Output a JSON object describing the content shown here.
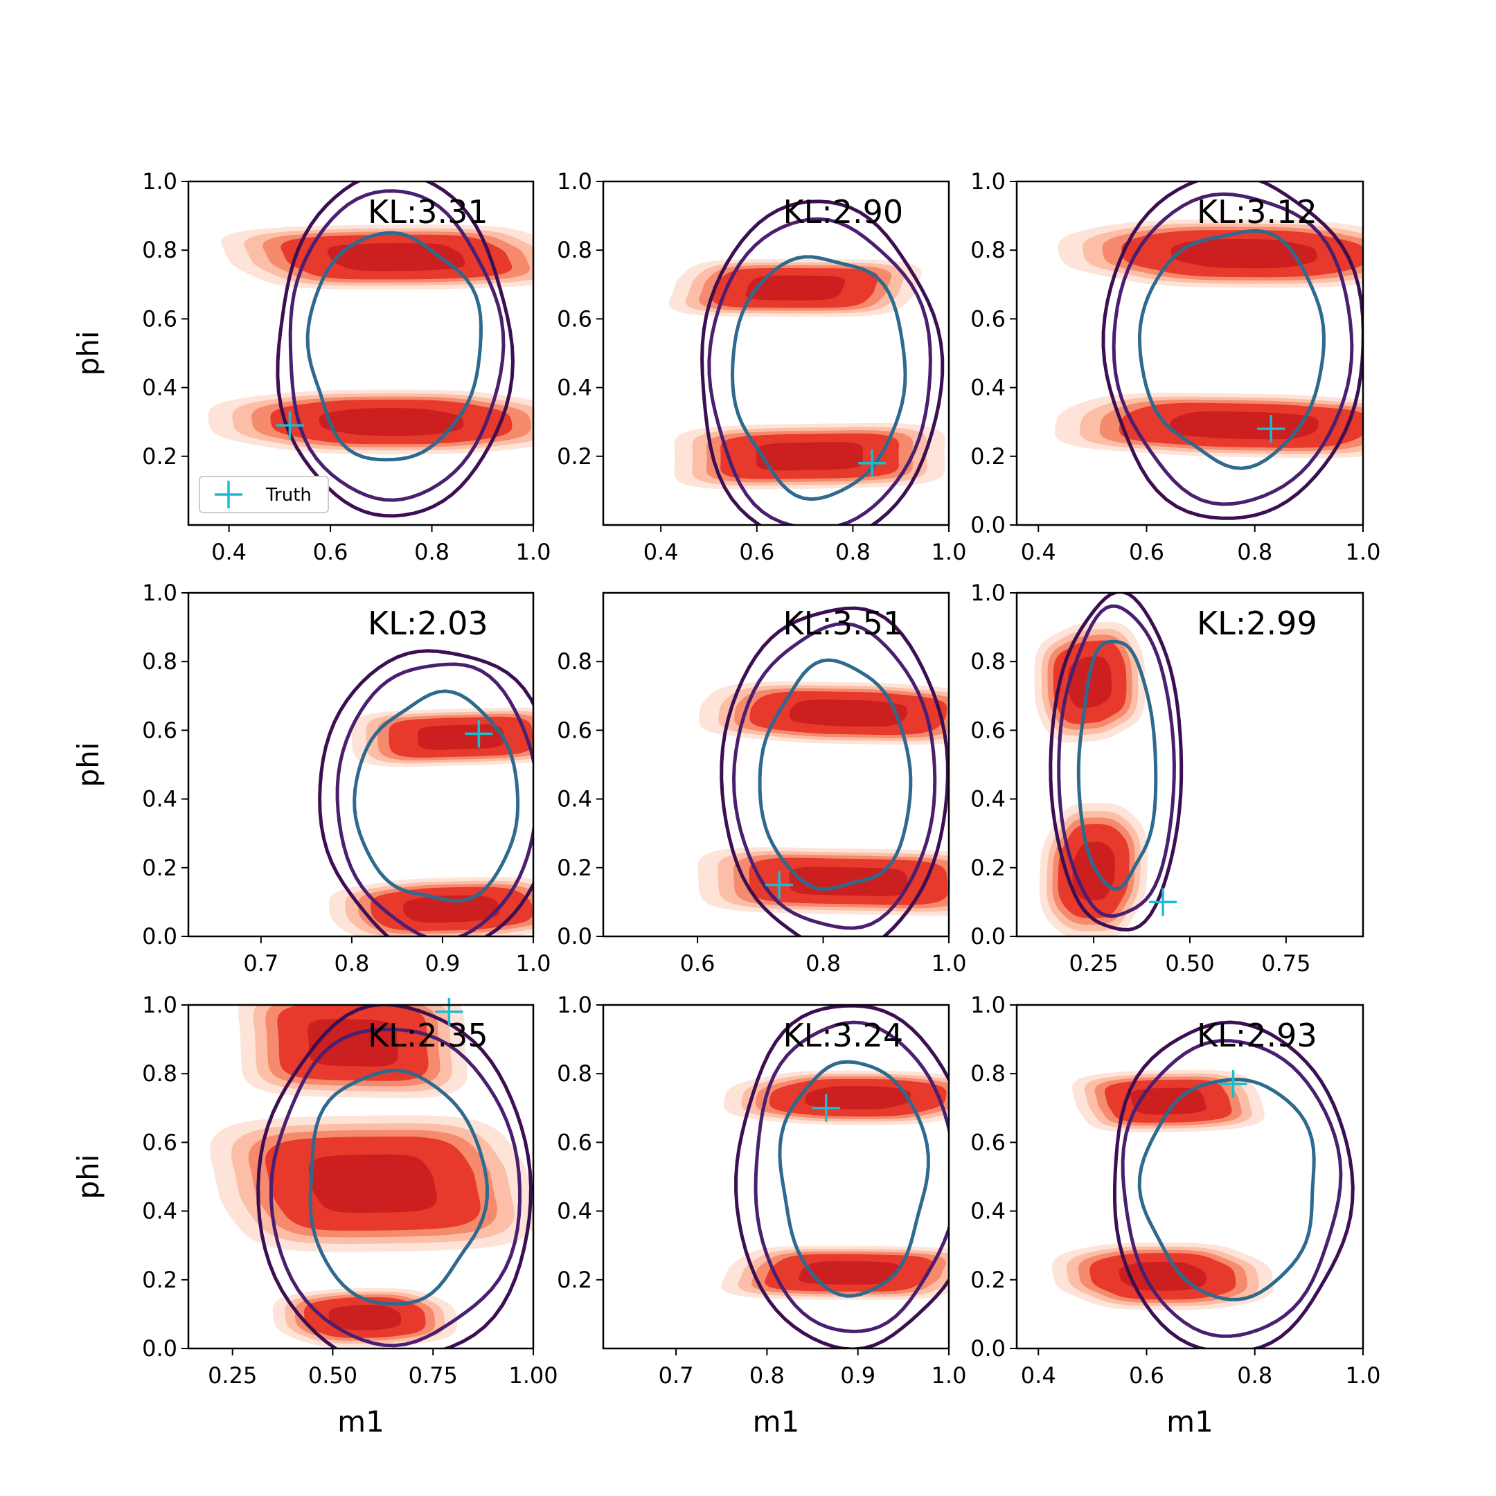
{
  "colors": {
    "fill_levels": [
      "#fde3d8",
      "#fcbea6",
      "#f58a6d",
      "#e8392d",
      "#cc1f1f"
    ],
    "outer_contour": "#3b0f52",
    "mid_contour": "#4a1f70",
    "inner_contour": "#2e6a8e",
    "truth_marker": "#17becf",
    "frame": "#000000"
  },
  "legend": {
    "label": "Truth"
  },
  "chart_data": [
    {
      "type": "contour",
      "kl_label": "KL:3.31",
      "xlabel": "",
      "ylabel": "phi",
      "xlim": [
        0.32,
        1.0
      ],
      "ylim": [
        0.0,
        1.0
      ],
      "xticks": [
        "0.4",
        "0.6",
        "0.8",
        "1.0"
      ],
      "yticks": [
        "0.2",
        "0.4",
        "0.6",
        "0.8",
        "1.0"
      ],
      "blobs": [
        {
          "cx": 0.73,
          "cy": 0.78,
          "rx": 0.22,
          "ry": 0.065
        },
        {
          "cx": 0.72,
          "cy": 0.3,
          "rx": 0.22,
          "ry": 0.065
        }
      ],
      "contours": {
        "cx": 0.725,
        "cy": 0.52,
        "outer": [
          0.23,
          0.5
        ],
        "mid": [
          0.21,
          0.45
        ],
        "inner": [
          0.17,
          0.33
        ]
      },
      "truth": [
        0.52,
        0.29
      ],
      "legend": true
    },
    {
      "type": "contour",
      "kl_label": "KL:2.90",
      "xlabel": "",
      "ylabel": "",
      "xlim": [
        0.28,
        1.0
      ],
      "ylim": [
        0.0,
        1.0
      ],
      "xticks": [
        "0.4",
        "0.6",
        "0.8",
        "1.0"
      ],
      "yticks": [
        "0.2",
        "0.4",
        "0.6",
        "0.8",
        "1.0"
      ],
      "blobs": [
        {
          "cx": 0.68,
          "cy": 0.69,
          "rx": 0.17,
          "ry": 0.06
        },
        {
          "cx": 0.71,
          "cy": 0.2,
          "rx": 0.2,
          "ry": 0.065
        }
      ],
      "contours": {
        "cx": 0.73,
        "cy": 0.44,
        "outer": [
          0.25,
          0.5
        ],
        "mid": [
          0.23,
          0.45
        ],
        "inner": [
          0.18,
          0.35
        ]
      },
      "truth": [
        0.84,
        0.18
      ],
      "legend": false
    },
    {
      "type": "contour",
      "kl_label": "KL:3.12",
      "xlabel": "",
      "ylabel": "",
      "xlim": [
        0.36,
        1.0
      ],
      "ylim": [
        0.0,
        1.0
      ],
      "xticks": [
        "0.4",
        "0.6",
        "0.8",
        "1.0"
      ],
      "yticks": [
        "0.0",
        "0.2",
        "0.4",
        "0.6",
        "0.8",
        "1.0"
      ],
      "blobs": [
        {
          "cx": 0.78,
          "cy": 0.79,
          "rx": 0.22,
          "ry": 0.065
        },
        {
          "cx": 0.78,
          "cy": 0.29,
          "rx": 0.22,
          "ry": 0.065
        }
      ],
      "contours": {
        "cx": 0.76,
        "cy": 0.52,
        "outer": [
          0.24,
          0.5
        ],
        "mid": [
          0.22,
          0.45
        ],
        "inner": [
          0.17,
          0.34
        ]
      },
      "truth": [
        0.83,
        0.28
      ],
      "legend": false
    },
    {
      "type": "contour",
      "kl_label": "KL:2.03",
      "xlabel": "",
      "ylabel": "phi",
      "xlim": [
        0.62,
        1.0
      ],
      "ylim": [
        0.0,
        1.0
      ],
      "xticks": [
        "0.7",
        "0.8",
        "0.9",
        "1.0"
      ],
      "yticks": [
        "0.0",
        "0.2",
        "0.4",
        "0.6",
        "0.8",
        "1.0"
      ],
      "blobs": [
        {
          "cx": 0.92,
          "cy": 0.58,
          "rx": 0.08,
          "ry": 0.06
        },
        {
          "cx": 0.91,
          "cy": 0.08,
          "rx": 0.09,
          "ry": 0.06
        }
      ],
      "contours": {
        "cx": 0.895,
        "cy": 0.4,
        "outer": [
          0.13,
          0.44
        ],
        "mid": [
          0.11,
          0.4
        ],
        "inner": [
          0.09,
          0.3
        ]
      },
      "truth": [
        0.94,
        0.59
      ],
      "legend": false
    },
    {
      "type": "contour",
      "kl_label": "KL:3.51",
      "xlabel": "",
      "ylabel": "",
      "xlim": [
        0.45,
        1.0
      ],
      "ylim": [
        0.0,
        1.0
      ],
      "xticks": [
        "0.6",
        "0.8",
        "1.0"
      ],
      "yticks": [
        "0.0",
        "0.2",
        "0.4",
        "0.6",
        "0.8"
      ],
      "blobs": [
        {
          "cx": 0.84,
          "cy": 0.65,
          "rx": 0.16,
          "ry": 0.06
        },
        {
          "cx": 0.84,
          "cy": 0.16,
          "rx": 0.16,
          "ry": 0.07
        }
      ],
      "contours": {
        "cx": 0.82,
        "cy": 0.46,
        "outer": [
          0.18,
          0.5
        ],
        "mid": [
          0.16,
          0.44
        ],
        "inner": [
          0.12,
          0.33
        ]
      },
      "truth": [
        0.73,
        0.15
      ],
      "legend": false
    },
    {
      "type": "contour",
      "kl_label": "KL:2.99",
      "xlabel": "",
      "ylabel": "",
      "xlim": [
        0.05,
        0.95
      ],
      "ylim": [
        0.0,
        1.0
      ],
      "xticks": [
        "0.25",
        "0.50",
        "0.75"
      ],
      "yticks": [
        "0.0",
        "0.2",
        "0.4",
        "0.6",
        "0.8",
        "1.0"
      ],
      "blobs": [
        {
          "cx": 0.24,
          "cy": 0.74,
          "rx": 0.09,
          "ry": 0.12
        },
        {
          "cx": 0.25,
          "cy": 0.19,
          "rx": 0.09,
          "ry": 0.13
        }
      ],
      "contours": {
        "cx": 0.31,
        "cy": 0.5,
        "outer": [
          0.17,
          0.49
        ],
        "mid": [
          0.15,
          0.45
        ],
        "inner": [
          0.1,
          0.36
        ]
      },
      "truth": [
        0.43,
        0.1
      ],
      "legend": false
    },
    {
      "type": "contour",
      "kl_label": "KL:2.35",
      "xlabel": "m1",
      "ylabel": "phi",
      "xlim": [
        0.14,
        1.0
      ],
      "ylim": [
        0.0,
        1.0
      ],
      "xticks": [
        "0.25",
        "0.50",
        "0.75",
        "1.00"
      ],
      "yticks": [
        "0.0",
        "0.2",
        "0.4",
        "0.6",
        "0.8",
        "1.0"
      ],
      "blobs": [
        {
          "cx": 0.55,
          "cy": 0.89,
          "rx": 0.2,
          "ry": 0.11
        },
        {
          "cx": 0.6,
          "cy": 0.48,
          "rx": 0.26,
          "ry": 0.14
        },
        {
          "cx": 0.58,
          "cy": 0.09,
          "rx": 0.14,
          "ry": 0.06
        }
      ],
      "contours": {
        "cx": 0.655,
        "cy": 0.47,
        "outer": [
          0.34,
          0.52
        ],
        "mid": [
          0.31,
          0.46
        ],
        "inner": [
          0.22,
          0.34
        ]
      },
      "truth": [
        0.79,
        0.98
      ],
      "legend": false
    },
    {
      "type": "contour",
      "kl_label": "KL:3.24",
      "xlabel": "m1",
      "ylabel": "",
      "xlim": [
        0.62,
        1.0
      ],
      "ylim": [
        0.0,
        1.0
      ],
      "xticks": [
        "0.7",
        "0.8",
        "0.9",
        "1.0"
      ],
      "yticks": [
        "0.2",
        "0.4",
        "0.6",
        "0.8",
        "1.0"
      ],
      "blobs": [
        {
          "cx": 0.9,
          "cy": 0.73,
          "rx": 0.09,
          "ry": 0.055
        },
        {
          "cx": 0.89,
          "cy": 0.22,
          "rx": 0.09,
          "ry": 0.055
        }
      ],
      "contours": {
        "cx": 0.895,
        "cy": 0.5,
        "outer": [
          0.13,
          0.5
        ],
        "mid": [
          0.11,
          0.45
        ],
        "inner": [
          0.08,
          0.34
        ]
      },
      "truth": [
        0.865,
        0.7
      ],
      "legend": false
    },
    {
      "type": "contour",
      "kl_label": "KL:2.93",
      "xlabel": "m1",
      "ylabel": "",
      "xlim": [
        0.36,
        1.0
      ],
      "ylim": [
        0.0,
        1.0
      ],
      "xticks": [
        "0.4",
        "0.6",
        "0.8",
        "1.0"
      ],
      "yticks": [
        "0.0",
        "0.2",
        "0.4",
        "0.6",
        "0.8",
        "1.0"
      ],
      "blobs": [
        {
          "cx": 0.64,
          "cy": 0.72,
          "rx": 0.12,
          "ry": 0.06
        },
        {
          "cx": 0.63,
          "cy": 0.21,
          "rx": 0.13,
          "ry": 0.065
        }
      ],
      "contours": {
        "cx": 0.755,
        "cy": 0.47,
        "outer": [
          0.22,
          0.48
        ],
        "mid": [
          0.2,
          0.43
        ],
        "inner": [
          0.16,
          0.32
        ]
      },
      "truth": [
        0.76,
        0.77
      ],
      "legend": false
    }
  ]
}
